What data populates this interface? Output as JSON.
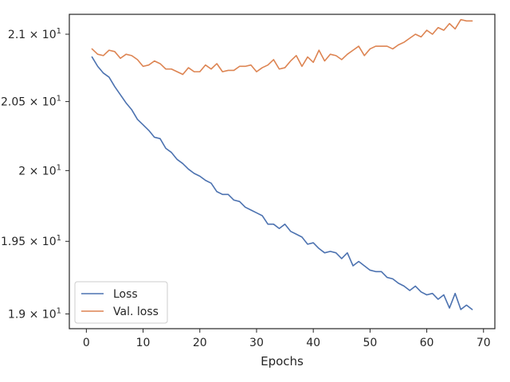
{
  "chart_data": {
    "type": "line",
    "title": "",
    "xlabel": "Epochs",
    "ylabel": "",
    "xlim": [
      -3,
      72
    ],
    "ylim": [
      18.9,
      21.15
    ],
    "y_scale": "log",
    "grid": false,
    "legend_position": "lower-left",
    "x_ticks": [
      0,
      10,
      20,
      30,
      40,
      50,
      60,
      70
    ],
    "x_tick_labels": [
      "0",
      "10",
      "20",
      "30",
      "40",
      "50",
      "60",
      "70"
    ],
    "y_ticks": [
      19.0,
      19.5,
      20.0,
      20.5,
      21.0
    ],
    "y_tick_mantissas": [
      "1.9",
      "1.95",
      "2",
      "2.05",
      "2.1"
    ],
    "y_tick_base": "10",
    "y_tick_exp": "1",
    "x": [
      1,
      2,
      3,
      4,
      5,
      6,
      7,
      8,
      9,
      10,
      11,
      12,
      13,
      14,
      15,
      16,
      17,
      18,
      19,
      20,
      21,
      22,
      23,
      24,
      25,
      26,
      27,
      28,
      29,
      30,
      31,
      32,
      33,
      34,
      35,
      36,
      37,
      38,
      39,
      40,
      41,
      42,
      43,
      44,
      45,
      46,
      47,
      48,
      49,
      50,
      51,
      52,
      53,
      54,
      55,
      56,
      57,
      58,
      59,
      60,
      61,
      62,
      63,
      64,
      65,
      66,
      67,
      68
    ],
    "series": [
      {
        "name": "Loss",
        "color": "#4c72b0",
        "values": [
          20.83,
          20.76,
          20.71,
          20.68,
          20.61,
          20.55,
          20.49,
          20.44,
          20.37,
          20.33,
          20.29,
          20.24,
          20.23,
          20.16,
          20.13,
          20.08,
          20.05,
          20.01,
          19.98,
          19.96,
          19.93,
          19.91,
          19.85,
          19.83,
          19.83,
          19.79,
          19.78,
          19.74,
          19.72,
          19.7,
          19.68,
          19.62,
          19.62,
          19.59,
          19.62,
          19.57,
          19.55,
          19.53,
          19.48,
          19.49,
          19.45,
          19.42,
          19.43,
          19.42,
          19.38,
          19.42,
          19.33,
          19.36,
          19.33,
          19.3,
          19.29,
          19.29,
          19.25,
          19.24,
          19.21,
          19.19,
          19.16,
          19.19,
          19.15,
          19.13,
          19.14,
          19.1,
          19.13,
          19.04,
          19.14,
          19.03,
          19.06,
          19.03
        ]
      },
      {
        "name": "Val. loss",
        "color": "#dd8452",
        "values": [
          20.89,
          20.85,
          20.84,
          20.88,
          20.87,
          20.82,
          20.85,
          20.84,
          20.81,
          20.76,
          20.77,
          20.8,
          20.78,
          20.74,
          20.74,
          20.72,
          20.7,
          20.75,
          20.72,
          20.72,
          20.77,
          20.74,
          20.78,
          20.72,
          20.73,
          20.73,
          20.76,
          20.76,
          20.77,
          20.72,
          20.75,
          20.77,
          20.81,
          20.74,
          20.75,
          20.8,
          20.84,
          20.76,
          20.83,
          20.79,
          20.88,
          20.8,
          20.85,
          20.84,
          20.81,
          20.85,
          20.88,
          20.91,
          20.84,
          20.89,
          20.91,
          20.91,
          20.91,
          20.89,
          20.92,
          20.94,
          20.97,
          21.0,
          20.98,
          21.03,
          21.0,
          21.05,
          21.03,
          21.08,
          21.04,
          21.11,
          21.1,
          21.1
        ]
      }
    ]
  }
}
